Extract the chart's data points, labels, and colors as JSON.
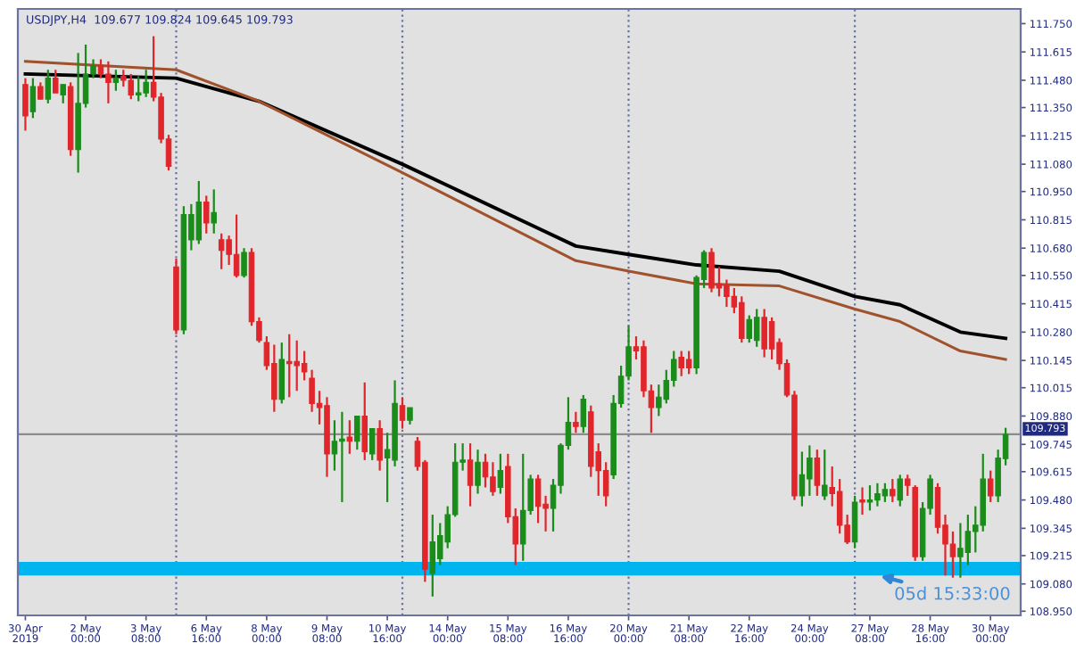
{
  "chart_data": {
    "type": "candlestick",
    "title": "USDJPY,H4  109.677 109.824 109.645 109.793",
    "categories": [
      "30 Apr 2019",
      null,
      null,
      null,
      null,
      null,
      null,
      null,
      "2 May 00:00",
      null,
      null,
      null,
      null,
      null,
      null,
      null,
      "3 May 08:00",
      null,
      null,
      null,
      null,
      null,
      null,
      null,
      "6 May 16:00",
      null,
      null,
      null,
      null,
      null,
      null,
      null,
      "8 May 00:00",
      null,
      null,
      null,
      null,
      null,
      null,
      null,
      "9 May 08:00",
      null,
      null,
      null,
      null,
      null,
      null,
      null,
      "10 May 16:00",
      null,
      null,
      null,
      null,
      null,
      null,
      null,
      "14 May 00:00",
      null,
      null,
      null,
      null,
      null,
      null,
      null,
      "15 May 08:00",
      null,
      null,
      null,
      null,
      null,
      null,
      null,
      "16 May 16:00",
      null,
      null,
      null,
      null,
      null,
      null,
      null,
      "20 May 00:00",
      null,
      null,
      null,
      null,
      null,
      null,
      null,
      "21 May 08:00",
      null,
      null,
      null,
      null,
      null,
      null,
      null,
      "22 May 16:00",
      null,
      null,
      null,
      null,
      null,
      null,
      null,
      "24 May 00:00",
      null,
      null,
      null,
      null,
      null,
      null,
      null,
      "27 May 08:00",
      null,
      null,
      null,
      null,
      null,
      null,
      null,
      "28 May 16:00",
      null,
      null,
      null,
      null,
      null,
      null,
      null,
      "30 May 00:00",
      null,
      null
    ],
    "ohlc": [
      [
        111.46,
        111.49,
        111.24,
        111.31
      ],
      [
        111.33,
        111.49,
        111.3,
        111.45
      ],
      [
        111.45,
        111.47,
        111.39,
        111.39
      ],
      [
        111.39,
        111.53,
        111.37,
        111.49
      ],
      [
        111.49,
        111.53,
        111.42,
        111.42
      ],
      [
        111.41,
        111.46,
        111.37,
        111.46
      ],
      [
        111.45,
        111.47,
        111.12,
        111.15
      ],
      [
        111.15,
        111.61,
        111.04,
        111.37
      ],
      [
        111.37,
        111.65,
        111.35,
        111.51
      ],
      [
        111.51,
        111.58,
        111.49,
        111.55
      ],
      [
        111.55,
        111.58,
        111.49,
        111.51
      ],
      [
        111.51,
        111.57,
        111.37,
        111.47
      ],
      [
        111.47,
        111.53,
        111.43,
        111.49
      ],
      [
        111.5,
        111.53,
        111.45,
        111.48
      ],
      [
        111.48,
        111.51,
        111.39,
        111.41
      ],
      [
        111.41,
        111.5,
        111.38,
        111.42
      ],
      [
        111.42,
        111.53,
        111.4,
        111.47
      ],
      [
        111.47,
        111.69,
        111.38,
        111.4
      ],
      [
        111.4,
        111.42,
        111.18,
        111.2
      ],
      [
        111.2,
        111.22,
        111.05,
        111.07
      ],
      [
        110.59,
        110.63,
        110.27,
        110.29
      ],
      [
        110.29,
        110.88,
        110.27,
        110.84
      ],
      [
        110.72,
        110.89,
        110.67,
        110.84
      ],
      [
        110.72,
        111.0,
        110.7,
        110.9
      ],
      [
        110.9,
        110.93,
        110.75,
        110.8
      ],
      [
        110.8,
        110.96,
        110.75,
        110.85
      ],
      [
        110.72,
        110.75,
        110.58,
        110.67
      ],
      [
        110.72,
        110.74,
        110.6,
        110.65
      ],
      [
        110.65,
        110.84,
        110.54,
        110.55
      ],
      [
        110.55,
        110.68,
        110.54,
        110.66
      ],
      [
        110.66,
        110.68,
        110.31,
        110.33
      ],
      [
        110.33,
        110.35,
        110.23,
        110.24
      ],
      [
        110.23,
        110.26,
        110.1,
        110.12
      ],
      [
        110.13,
        110.22,
        109.9,
        109.96
      ],
      [
        109.96,
        110.23,
        109.94,
        110.15
      ],
      [
        110.14,
        110.27,
        109.97,
        110.13
      ],
      [
        110.14,
        110.24,
        110.0,
        110.12
      ],
      [
        110.13,
        110.19,
        110.05,
        110.09
      ],
      [
        110.06,
        110.1,
        109.9,
        109.94
      ],
      [
        109.94,
        110.0,
        109.84,
        109.92
      ],
      [
        109.93,
        109.97,
        109.59,
        109.7
      ],
      [
        109.7,
        109.86,
        109.62,
        109.76
      ],
      [
        109.76,
        109.9,
        109.47,
        109.77
      ],
      [
        109.78,
        109.86,
        109.7,
        109.76
      ],
      [
        109.76,
        109.88,
        109.72,
        109.88
      ],
      [
        109.88,
        110.04,
        109.67,
        109.71
      ],
      [
        109.7,
        109.82,
        109.67,
        109.82
      ],
      [
        109.82,
        109.86,
        109.62,
        109.67
      ],
      [
        109.68,
        109.8,
        109.47,
        109.72
      ],
      [
        109.67,
        110.05,
        109.64,
        109.94
      ],
      [
        109.93,
        109.97,
        109.82,
        109.86
      ],
      [
        109.86,
        109.92,
        109.84,
        109.92
      ],
      [
        109.76,
        109.78,
        109.62,
        109.64
      ],
      [
        109.66,
        109.67,
        109.09,
        109.15
      ],
      [
        109.13,
        109.41,
        109.02,
        109.28
      ],
      [
        109.2,
        109.37,
        109.17,
        109.31
      ],
      [
        109.28,
        109.45,
        109.25,
        109.41
      ],
      [
        109.41,
        109.75,
        109.4,
        109.66
      ],
      [
        109.66,
        109.75,
        109.62,
        109.67
      ],
      [
        109.67,
        109.75,
        109.45,
        109.55
      ],
      [
        109.55,
        109.72,
        109.51,
        109.66
      ],
      [
        109.66,
        109.7,
        109.54,
        109.59
      ],
      [
        109.59,
        109.66,
        109.5,
        109.52
      ],
      [
        109.54,
        109.7,
        109.51,
        109.62
      ],
      [
        109.64,
        109.7,
        109.37,
        109.4
      ],
      [
        109.4,
        109.44,
        109.17,
        109.27
      ],
      [
        109.27,
        109.7,
        109.19,
        109.43
      ],
      [
        109.43,
        109.6,
        109.41,
        109.58
      ],
      [
        109.58,
        109.6,
        109.37,
        109.45
      ],
      [
        109.46,
        109.5,
        109.33,
        109.44
      ],
      [
        109.44,
        109.58,
        109.33,
        109.55
      ],
      [
        109.55,
        109.75,
        109.51,
        109.74
      ],
      [
        109.74,
        109.97,
        109.72,
        109.85
      ],
      [
        109.85,
        109.9,
        109.8,
        109.83
      ],
      [
        109.83,
        109.98,
        109.8,
        109.96
      ],
      [
        109.9,
        109.93,
        109.59,
        109.64
      ],
      [
        109.71,
        109.75,
        109.5,
        109.62
      ],
      [
        109.62,
        109.66,
        109.45,
        109.5
      ],
      [
        109.6,
        109.98,
        109.58,
        109.94
      ],
      [
        109.94,
        110.12,
        109.92,
        110.07
      ],
      [
        110.07,
        110.31,
        110.05,
        110.21
      ],
      [
        110.21,
        110.26,
        110.15,
        110.19
      ],
      [
        110.21,
        110.24,
        109.97,
        110.0
      ],
      [
        110.0,
        110.03,
        109.8,
        109.92
      ],
      [
        109.92,
        110.03,
        109.88,
        109.97
      ],
      [
        109.96,
        110.1,
        109.94,
        110.05
      ],
      [
        110.05,
        110.19,
        110.02,
        110.15
      ],
      [
        110.16,
        110.19,
        110.07,
        110.11
      ],
      [
        110.15,
        110.19,
        110.08,
        110.11
      ],
      [
        110.11,
        110.55,
        110.08,
        110.54
      ],
      [
        110.53,
        110.67,
        110.49,
        110.66
      ],
      [
        110.66,
        110.68,
        110.47,
        110.49
      ],
      [
        110.51,
        110.59,
        110.45,
        110.49
      ],
      [
        110.5,
        110.53,
        110.4,
        110.45
      ],
      [
        110.45,
        110.49,
        110.37,
        110.4
      ],
      [
        110.42,
        110.45,
        110.23,
        110.25
      ],
      [
        110.25,
        110.36,
        110.23,
        110.34
      ],
      [
        110.24,
        110.39,
        110.21,
        110.35
      ],
      [
        110.35,
        110.39,
        110.16,
        110.2
      ],
      [
        110.33,
        110.35,
        110.15,
        110.2
      ],
      [
        110.23,
        110.25,
        110.1,
        110.13
      ],
      [
        110.13,
        110.15,
        109.97,
        109.98
      ],
      [
        109.98,
        110.0,
        109.48,
        109.5
      ],
      [
        109.5,
        109.71,
        109.45,
        109.6
      ],
      [
        109.58,
        109.74,
        109.5,
        109.68
      ],
      [
        109.68,
        109.72,
        109.5,
        109.55
      ],
      [
        109.5,
        109.72,
        109.48,
        109.55
      ],
      [
        109.54,
        109.64,
        109.45,
        109.51
      ],
      [
        109.52,
        109.58,
        109.32,
        109.36
      ],
      [
        109.36,
        109.41,
        109.27,
        109.28
      ],
      [
        109.28,
        109.5,
        109.25,
        109.47
      ],
      [
        109.48,
        109.54,
        109.41,
        109.47
      ],
      [
        109.47,
        109.55,
        109.43,
        109.48
      ],
      [
        109.48,
        109.56,
        109.45,
        109.51
      ],
      [
        109.5,
        109.56,
        109.47,
        109.53
      ],
      [
        109.53,
        109.58,
        109.47,
        109.5
      ],
      [
        109.48,
        109.6,
        109.45,
        109.58
      ],
      [
        109.58,
        109.6,
        109.5,
        109.55
      ],
      [
        109.54,
        109.55,
        109.19,
        109.21
      ],
      [
        109.21,
        109.47,
        109.19,
        109.44
      ],
      [
        109.44,
        109.6,
        109.41,
        109.58
      ],
      [
        109.54,
        109.56,
        109.32,
        109.35
      ],
      [
        109.36,
        109.41,
        109.12,
        109.27
      ],
      [
        109.27,
        109.33,
        109.11,
        109.21
      ],
      [
        109.21,
        109.37,
        109.11,
        109.25
      ],
      [
        109.23,
        109.41,
        109.17,
        109.33
      ],
      [
        109.33,
        109.45,
        109.23,
        109.36
      ],
      [
        109.36,
        109.7,
        109.33,
        109.58
      ],
      [
        109.58,
        109.62,
        109.47,
        109.5
      ],
      [
        109.5,
        109.72,
        109.47,
        109.68
      ],
      [
        109.677,
        109.824,
        109.645,
        109.793
      ]
    ],
    "colors": [
      "#e0262b",
      "#1a8c1a",
      "#e0262b",
      "#1a8c1a",
      "#e0262b",
      "#1a8c1a",
      "#e0262b",
      "#1a8c1a",
      "#1a8c1a",
      "#1a8c1a",
      "#e0262b",
      "#e0262b",
      "#1a8c1a",
      "#e0262b",
      "#e0262b",
      "#1a8c1a",
      "#1a8c1a",
      "#e0262b",
      "#e0262b",
      "#e0262b",
      "#e0262b",
      "#1a8c1a",
      "#1a8c1a",
      "#1a8c1a",
      "#e0262b",
      "#1a8c1a",
      "#e0262b",
      "#e0262b",
      "#e0262b",
      "#1a8c1a",
      "#e0262b",
      "#e0262b",
      "#e0262b",
      "#e0262b",
      "#1a8c1a",
      "#e0262b",
      "#e0262b",
      "#e0262b",
      "#e0262b",
      "#e0262b",
      "#e0262b",
      "#1a8c1a",
      "#1a8c1a",
      "#e0262b",
      "#1a8c1a",
      "#e0262b",
      "#1a8c1a",
      "#e0262b",
      "#1a8c1a",
      "#1a8c1a",
      "#e0262b",
      "#1a8c1a",
      "#e0262b",
      "#e0262b",
      "#1a8c1a",
      "#1a8c1a",
      "#1a8c1a",
      "#1a8c1a",
      "#1a8c1a",
      "#e0262b",
      "#1a8c1a",
      "#e0262b",
      "#e0262b",
      "#1a8c1a",
      "#e0262b",
      "#e0262b",
      "#1a8c1a",
      "#1a8c1a",
      "#e0262b",
      "#e0262b",
      "#1a8c1a",
      "#1a8c1a",
      "#1a8c1a",
      "#e0262b",
      "#1a8c1a",
      "#e0262b",
      "#e0262b",
      "#e0262b",
      "#1a8c1a",
      "#1a8c1a",
      "#1a8c1a",
      "#e0262b",
      "#e0262b",
      "#e0262b",
      "#1a8c1a",
      "#1a8c1a",
      "#1a8c1a",
      "#e0262b",
      "#e0262b",
      "#1a8c1a",
      "#1a8c1a",
      "#e0262b",
      "#e0262b",
      "#e0262b",
      "#e0262b",
      "#e0262b",
      "#1a8c1a",
      "#1a8c1a",
      "#e0262b",
      "#e0262b",
      "#e0262b",
      "#e0262b",
      "#e0262b",
      "#1a8c1a",
      "#1a8c1a",
      "#e0262b",
      "#1a8c1a",
      "#e0262b",
      "#e0262b",
      "#e0262b",
      "#1a8c1a",
      "#e0262b",
      "#1a8c1a",
      "#1a8c1a",
      "#1a8c1a",
      "#e0262b",
      "#1a8c1a",
      "#e0262b",
      "#e0262b",
      "#1a8c1a",
      "#1a8c1a",
      "#e0262b",
      "#e0262b",
      "#e0262b",
      "#1a8c1a",
      "#1a8c1a",
      "#1a8c1a",
      "#1a8c1a",
      "#e0262b",
      "#1a8c1a",
      "#1a8c1a"
    ],
    "series": [
      {
        "type": "line",
        "color": "#000000",
        "values": [
          111.51,
          null,
          null,
          null,
          null,
          null,
          null,
          null,
          null,
          null,
          null,
          null,
          null,
          null,
          null,
          null,
          null,
          null,
          null,
          null,
          111.49,
          null,
          null,
          null,
          null,
          null,
          null,
          null,
          null,
          null,
          null,
          111.38,
          null,
          null,
          null,
          null,
          null,
          null,
          null,
          null,
          null,
          null,
          null,
          null,
          null,
          null,
          null,
          null,
          null,
          null,
          111.08,
          null,
          null,
          null,
          null,
          null,
          null,
          null,
          null,
          null,
          null,
          null,
          null,
          null,
          null,
          null,
          null,
          null,
          null,
          null,
          null,
          null,
          null,
          110.69,
          null,
          null,
          null,
          null,
          null,
          null,
          110.65,
          null,
          null,
          null,
          null,
          null,
          null,
          null,
          null,
          110.6,
          null,
          null,
          null,
          null,
          null,
          null,
          null,
          null,
          null,
          null,
          110.57,
          null,
          null,
          null,
          null,
          null,
          null,
          null,
          null,
          null,
          110.45,
          null,
          null,
          null,
          null,
          null,
          110.41,
          null,
          null,
          null,
          null,
          null,
          null,
          null,
          110.28,
          null,
          null,
          null,
          null,
          null,
          110.25
        ]
      },
      {
        "type": "line",
        "color": "#a0522d",
        "values": [
          111.57,
          null,
          null,
          null,
          null,
          null,
          null,
          null,
          null,
          null,
          null,
          null,
          null,
          null,
          null,
          null,
          null,
          null,
          null,
          null,
          111.53,
          null,
          null,
          null,
          null,
          null,
          null,
          null,
          null,
          null,
          null,
          111.38,
          null,
          null,
          null,
          null,
          null,
          null,
          null,
          null,
          null,
          null,
          null,
          null,
          null,
          null,
          null,
          null,
          null,
          null,
          111.04,
          null,
          null,
          null,
          null,
          null,
          null,
          null,
          null,
          null,
          null,
          null,
          null,
          null,
          null,
          null,
          null,
          null,
          null,
          null,
          null,
          null,
          null,
          110.62,
          null,
          null,
          null,
          null,
          null,
          null,
          110.57,
          null,
          null,
          null,
          null,
          null,
          null,
          null,
          null,
          110.51,
          null,
          null,
          null,
          null,
          null,
          null,
          null,
          null,
          null,
          null,
          110.5,
          null,
          null,
          null,
          null,
          null,
          null,
          null,
          null,
          null,
          110.39,
          null,
          null,
          null,
          null,
          null,
          110.33,
          null,
          null,
          null,
          null,
          null,
          null,
          null,
          110.19,
          null,
          null,
          null,
          null,
          null,
          110.15
        ]
      }
    ],
    "ylim": [
      108.93,
      111.82
    ],
    "yticks": [
      {
        "value": 111.75,
        "label": "111.750"
      },
      {
        "value": 111.615,
        "label": "111.615"
      },
      {
        "value": 111.48,
        "label": "111.480"
      },
      {
        "value": 111.35,
        "label": "111.350"
      },
      {
        "value": 111.215,
        "label": "111.215"
      },
      {
        "value": 111.08,
        "label": "111.080"
      },
      {
        "value": 110.95,
        "label": "110.950"
      },
      {
        "value": 110.815,
        "label": "110.815"
      },
      {
        "value": 110.68,
        "label": "110.680"
      },
      {
        "value": 110.55,
        "label": "110.550"
      },
      {
        "value": 110.415,
        "label": "110.415"
      },
      {
        "value": 110.28,
        "label": "110.280"
      },
      {
        "value": 110.145,
        "label": "110.145"
      },
      {
        "value": 110.015,
        "label": "110.015"
      },
      {
        "value": 109.88,
        "label": "109.880"
      },
      {
        "value": 109.745,
        "label": "109.745"
      },
      {
        "value": 109.615,
        "label": "109.615"
      },
      {
        "value": 109.48,
        "label": "109.480"
      },
      {
        "value": 109.345,
        "label": "109.345"
      },
      {
        "value": 109.215,
        "label": "109.215"
      },
      {
        "value": 109.08,
        "label": "109.080"
      },
      {
        "value": 108.95,
        "label": "108.950"
      }
    ],
    "ref_lines": [
      {
        "axis": "y",
        "value": 109.793,
        "label": "109.793",
        "color": "#8c8c8c",
        "line_style": "solid"
      }
    ],
    "bands": [
      {
        "axis": "y",
        "from": 109.12,
        "to": 109.185,
        "color": "#00b4f0"
      }
    ],
    "annotations": [
      "05d 15:33:00"
    ],
    "grid": false,
    "legend": false
  }
}
